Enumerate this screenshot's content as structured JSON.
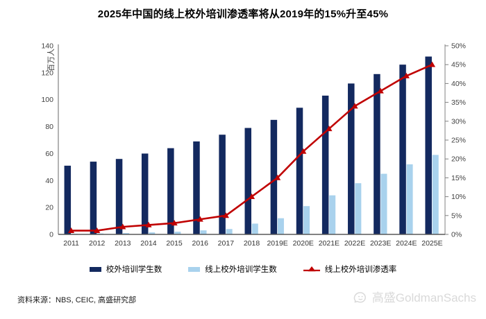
{
  "page": {
    "title": "2025年中国的线上校外培训渗透率将从2019年的15%升至45%",
    "source_label": "资料来源：NBS, CEIC, 高盛研究部",
    "watermark_text": "高盛GoldmanSachs"
  },
  "colors": {
    "offline_bar": "#13295f",
    "online_bar": "#a9d2ed",
    "penetration_line": "#c00000",
    "axis_line": "#808080",
    "bottom_axis_line": "#595959",
    "axis_text": "#404040",
    "x_axis_text": "#333333",
    "watermark": "#d9d9d9"
  },
  "chart_data": {
    "type": "bar",
    "note": "combo chart: two bar series on left axis (millions of students) + one line series on right axis (penetration %)",
    "categories": [
      "2011",
      "2012",
      "2013",
      "2014",
      "2015",
      "2016",
      "2017",
      "2018",
      "2019E",
      "2020E",
      "2021E",
      "2022E",
      "2023E",
      "2024E",
      "2025E"
    ],
    "series": [
      {
        "name": "校外培训学生数",
        "type": "bar",
        "axis": "left",
        "color": "#13295f",
        "values": [
          51,
          54,
          56,
          60,
          64,
          69,
          74,
          79,
          85,
          94,
          103,
          112,
          119,
          126,
          132
        ]
      },
      {
        "name": "线上校外培训学生数",
        "type": "bar",
        "axis": "left",
        "color": "#a9d2ed",
        "values": [
          0.5,
          0.7,
          1,
          1.5,
          2,
          3,
          4,
          8,
          12,
          21,
          29,
          38,
          45,
          52,
          59
        ]
      },
      {
        "name": "线上校外培训渗透率",
        "type": "line",
        "axis": "right",
        "color": "#c00000",
        "values": [
          1,
          1,
          2,
          2.5,
          3,
          4,
          5,
          10,
          15,
          22,
          28,
          34,
          38,
          42,
          45
        ]
      }
    ],
    "left_axis": {
      "label": "百万人",
      "min": 0,
      "max": 140,
      "step": 20
    },
    "right_axis": {
      "min": 0,
      "max": 50,
      "step": 5,
      "suffix": "%"
    },
    "grid": false,
    "legend_position": "bottom"
  }
}
